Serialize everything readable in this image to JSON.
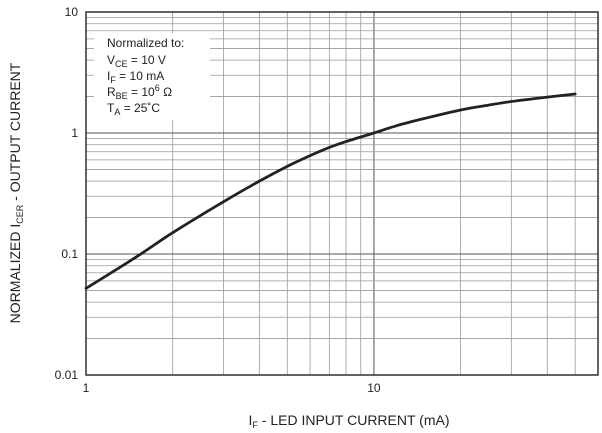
{
  "chart_data": {
    "type": "line",
    "x_scale": "log",
    "y_scale": "log",
    "xlim": [
      1,
      60
    ],
    "ylim": [
      0.01,
      10
    ],
    "grid": true,
    "x_ticks": [
      {
        "value": 1,
        "label": "1"
      },
      {
        "value": 10,
        "label": "10"
      }
    ],
    "y_ticks": [
      {
        "value": 0.01,
        "label": "0.01"
      },
      {
        "value": 0.1,
        "label": "0.1"
      },
      {
        "value": 1,
        "label": "1"
      },
      {
        "value": 10,
        "label": "10"
      }
    ],
    "xlabel": {
      "main": "I",
      "sub": "F",
      "rest": " - LED INPUT CURRENT (mA)"
    },
    "ylabel": {
      "main": "NORMALIZED I",
      "sub": "CER",
      "rest": " - OUTPUT CURRENT"
    },
    "annotation": {
      "title": "Normalized to:",
      "lines": [
        {
          "main": "V",
          "sub": "CE",
          "rest": " = 10 V"
        },
        {
          "main": "I",
          "sub": "F",
          "rest": " = 10 mA"
        },
        {
          "main": "R",
          "sub": "BE",
          "rest": " = 10",
          "sup": "6",
          "tail": " Ω"
        },
        {
          "main": "T",
          "sub": "A",
          "rest": " = 25˚C"
        }
      ]
    },
    "series": [
      {
        "x": [
          1,
          1.5,
          2,
          3,
          4,
          5,
          6,
          7,
          8,
          10,
          12,
          15,
          20,
          25,
          30,
          40,
          50
        ],
        "y": [
          0.052,
          0.095,
          0.15,
          0.27,
          0.4,
          0.53,
          0.65,
          0.76,
          0.85,
          1.0,
          1.15,
          1.32,
          1.55,
          1.7,
          1.82,
          1.98,
          2.1
        ]
      }
    ]
  }
}
